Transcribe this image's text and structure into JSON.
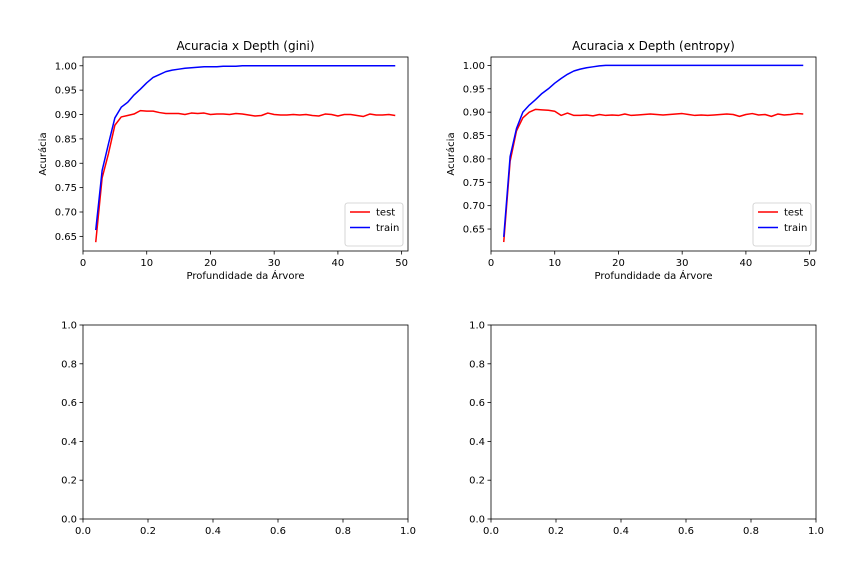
{
  "chart_data": [
    {
      "type": "line",
      "title": "Acuracia x Depth (gini)",
      "xlabel": "Profundidade da Árvore",
      "ylabel": "Acurácia",
      "xlim": [
        0,
        51
      ],
      "ylim": [
        0.62,
        1.018
      ],
      "xticks": [
        0,
        10,
        20,
        30,
        40,
        50
      ],
      "yticks": [
        0.65,
        0.7,
        0.75,
        0.8,
        0.85,
        0.9,
        0.95,
        1.0
      ],
      "ytick_decimals": 2,
      "legend_position": "lower-right",
      "grid": false,
      "x": [
        2,
        3,
        4,
        5,
        6,
        7,
        8,
        9,
        10,
        11,
        12,
        13,
        14,
        15,
        16,
        17,
        18,
        19,
        20,
        21,
        22,
        23,
        24,
        25,
        26,
        27,
        28,
        29,
        30,
        31,
        32,
        33,
        34,
        35,
        36,
        37,
        38,
        39,
        40,
        41,
        42,
        43,
        44,
        45,
        46,
        47,
        48,
        49
      ],
      "series": [
        {
          "name": "test",
          "color": "#ff0000",
          "values": [
            0.638,
            0.77,
            0.82,
            0.878,
            0.895,
            0.898,
            0.901,
            0.908,
            0.907,
            0.907,
            0.904,
            0.902,
            0.902,
            0.902,
            0.9,
            0.903,
            0.902,
            0.903,
            0.9,
            0.901,
            0.901,
            0.9,
            0.902,
            0.901,
            0.899,
            0.897,
            0.898,
            0.903,
            0.9,
            0.899,
            0.899,
            0.9,
            0.899,
            0.9,
            0.898,
            0.897,
            0.901,
            0.9,
            0.897,
            0.9,
            0.9,
            0.898,
            0.896,
            0.901,
            0.899,
            0.899,
            0.9,
            0.898
          ]
        },
        {
          "name": "train",
          "color": "#0000ff",
          "values": [
            0.663,
            0.785,
            0.84,
            0.893,
            0.915,
            0.925,
            0.94,
            0.952,
            0.965,
            0.976,
            0.982,
            0.988,
            0.991,
            0.993,
            0.995,
            0.996,
            0.997,
            0.998,
            0.998,
            0.998,
            0.999,
            0.999,
            0.999,
            1.0,
            1.0,
            1.0,
            1.0,
            1.0,
            1.0,
            1.0,
            1.0,
            1.0,
            1.0,
            1.0,
            1.0,
            1.0,
            1.0,
            1.0,
            1.0,
            1.0,
            1.0,
            1.0,
            1.0,
            1.0,
            1.0,
            1.0,
            1.0,
            1.0
          ]
        }
      ]
    },
    {
      "type": "line",
      "title": "Acuracia x Depth (entropy)",
      "xlabel": "Profundidade da Árvore",
      "ylabel": "Acurácia",
      "xlim": [
        0,
        51
      ],
      "ylim": [
        0.603,
        1.018
      ],
      "xticks": [
        0,
        10,
        20,
        30,
        40,
        50
      ],
      "yticks": [
        0.65,
        0.7,
        0.75,
        0.8,
        0.85,
        0.9,
        0.95,
        1.0
      ],
      "ytick_decimals": 2,
      "legend_position": "lower-right",
      "grid": false,
      "x": [
        2,
        3,
        4,
        5,
        6,
        7,
        8,
        9,
        10,
        11,
        12,
        13,
        14,
        15,
        16,
        17,
        18,
        19,
        20,
        21,
        22,
        23,
        24,
        25,
        26,
        27,
        28,
        29,
        30,
        31,
        32,
        33,
        34,
        35,
        36,
        37,
        38,
        39,
        40,
        41,
        42,
        43,
        44,
        45,
        46,
        47,
        48,
        49
      ],
      "series": [
        {
          "name": "test",
          "color": "#ff0000",
          "values": [
            0.622,
            0.795,
            0.86,
            0.888,
            0.9,
            0.906,
            0.905,
            0.904,
            0.902,
            0.893,
            0.898,
            0.893,
            0.893,
            0.894,
            0.892,
            0.895,
            0.893,
            0.894,
            0.893,
            0.896,
            0.893,
            0.894,
            0.895,
            0.896,
            0.895,
            0.894,
            0.895,
            0.896,
            0.897,
            0.895,
            0.893,
            0.894,
            0.893,
            0.894,
            0.895,
            0.896,
            0.895,
            0.891,
            0.895,
            0.897,
            0.894,
            0.895,
            0.891,
            0.896,
            0.894,
            0.895,
            0.897,
            0.896
          ]
        },
        {
          "name": "train",
          "color": "#0000ff",
          "values": [
            0.633,
            0.805,
            0.865,
            0.9,
            0.915,
            0.927,
            0.94,
            0.95,
            0.962,
            0.972,
            0.981,
            0.988,
            0.992,
            0.995,
            0.997,
            0.999,
            1.0,
            1.0,
            1.0,
            1.0,
            1.0,
            1.0,
            1.0,
            1.0,
            1.0,
            1.0,
            1.0,
            1.0,
            1.0,
            1.0,
            1.0,
            1.0,
            1.0,
            1.0,
            1.0,
            1.0,
            1.0,
            1.0,
            1.0,
            1.0,
            1.0,
            1.0,
            1.0,
            1.0,
            1.0,
            1.0,
            1.0,
            1.0
          ]
        }
      ]
    },
    {
      "type": "line",
      "title": "",
      "xlabel": "",
      "ylabel": "",
      "xlim": [
        0,
        1
      ],
      "ylim": [
        0,
        1
      ],
      "xticks": [
        0.0,
        0.2,
        0.4,
        0.6,
        0.8,
        1.0
      ],
      "yticks": [
        0.0,
        0.2,
        0.4,
        0.6,
        0.8,
        1.0
      ],
      "ytick_decimals": 1,
      "grid": false,
      "x": [],
      "series": []
    },
    {
      "type": "line",
      "title": "",
      "xlabel": "",
      "ylabel": "",
      "xlim": [
        0,
        1
      ],
      "ylim": [
        0,
        1
      ],
      "xticks": [
        0.0,
        0.2,
        0.4,
        0.6,
        0.8,
        1.0
      ],
      "yticks": [
        0.0,
        0.2,
        0.4,
        0.6,
        0.8,
        1.0
      ],
      "ytick_decimals": 1,
      "grid": false,
      "x": [],
      "series": []
    }
  ]
}
